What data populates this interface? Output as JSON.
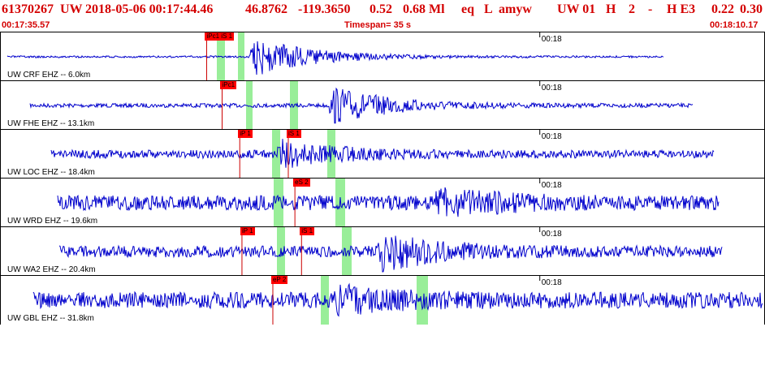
{
  "header": {
    "event_id": "61370267",
    "network": "UW",
    "origin_time": "2018-05-06 00:17:44.46",
    "lat": "46.8762",
    "lon": "-119.3650",
    "depth": "0.52",
    "magnitude": "0.68 Ml",
    "event_type": "eq",
    "flag": "L",
    "author": "amyw",
    "auth_net": "UW 01",
    "quality": "H",
    "count": "2",
    "dash": "-",
    "hq": "H E3",
    "err1": "0.22",
    "err2": "0.30",
    "start_time": "00:17:35.57",
    "timespan_label": "Timespan=  35 s",
    "end_time": "00:18:10.17"
  },
  "colors": {
    "header_text": "#d40000",
    "trace": "#0000cc",
    "pick_flag": "#ff0000",
    "pick_window": "#99ee99",
    "pick_line": "#cc0000",
    "border": "#000000"
  },
  "time_tick_label": "00:18",
  "traces": [
    {
      "label": "UW CRF EHZ -- 6.0km",
      "picks": [
        {
          "text": "iPc1 iS 1",
          "time": "00:17:44.9"
        }
      ]
    },
    {
      "label": "UW FHE EHZ -- 13.1km",
      "picks": [
        {
          "text": "iPc1",
          "time": "00:17:45.6"
        }
      ]
    },
    {
      "label": "UW LOC EHZ -- 18.4km",
      "picks": [
        {
          "text": "iP 1",
          "time": "00:17:46.4"
        },
        {
          "text": "iS 1",
          "time": "00:17:48.6"
        }
      ]
    },
    {
      "label": "UW WRD EHZ -- 19.6km",
      "picks": [
        {
          "text": "eS 2",
          "time": "00:17:48.9"
        }
      ]
    },
    {
      "label": "UW WA2 EHZ -- 20.4km",
      "picks": [
        {
          "text": "iP 1",
          "time": "00:17:46.5"
        },
        {
          "text": "iS 1",
          "time": "00:17:49.2"
        }
      ]
    },
    {
      "label": "UW GBL EHZ -- 31.8km",
      "picks": [
        {
          "text": "eP 2",
          "time": "00:17:47.9"
        }
      ]
    }
  ]
}
